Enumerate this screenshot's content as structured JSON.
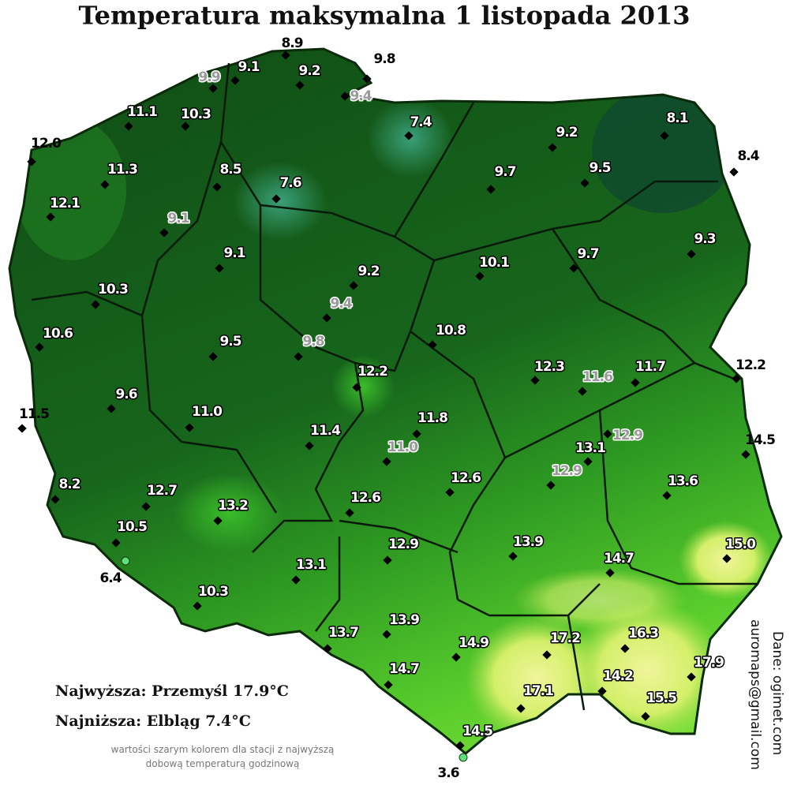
{
  "title": "Temperatura maksymalna 1 listopada 2013",
  "stations": [
    {
      "value": "8.9",
      "style": "black"
    },
    {
      "value": "9.1",
      "style": "white"
    },
    {
      "value": "9.9",
      "style": "gray"
    },
    {
      "value": "9.2",
      "style": "white"
    },
    {
      "value": "9.8",
      "style": "black"
    },
    {
      "value": "9.4",
      "style": "gray"
    },
    {
      "value": "11.1",
      "style": "white"
    },
    {
      "value": "10.3",
      "style": "white"
    },
    {
      "value": "7.4",
      "style": "white"
    },
    {
      "value": "9.2",
      "style": "white"
    },
    {
      "value": "8.1",
      "style": "white"
    },
    {
      "value": "12.0",
      "style": "black"
    },
    {
      "value": "11.3",
      "style": "white"
    },
    {
      "value": "8.5",
      "style": "white"
    },
    {
      "value": "7.6",
      "style": "white"
    },
    {
      "value": "9.7",
      "style": "white"
    },
    {
      "value": "9.5",
      "style": "white"
    },
    {
      "value": "8.4",
      "style": "black"
    },
    {
      "value": "12.1",
      "style": "white"
    },
    {
      "value": "9.1",
      "style": "gray"
    },
    {
      "value": "9.1",
      "style": "white"
    },
    {
      "value": "10.1",
      "style": "white"
    },
    {
      "value": "9.7",
      "style": "white"
    },
    {
      "value": "9.3",
      "style": "white"
    },
    {
      "value": "9.2",
      "style": "white"
    },
    {
      "value": "10.3",
      "style": "white"
    },
    {
      "value": "9.4",
      "style": "gray"
    },
    {
      "value": "10.6",
      "style": "white"
    },
    {
      "value": "9.5",
      "style": "white"
    },
    {
      "value": "9.8",
      "style": "gray"
    },
    {
      "value": "10.8",
      "style": "white"
    },
    {
      "value": "12.2",
      "style": "white"
    },
    {
      "value": "12.3",
      "style": "white"
    },
    {
      "value": "11.6",
      "style": "gray"
    },
    {
      "value": "11.7",
      "style": "white"
    },
    {
      "value": "12.2",
      "style": "black"
    },
    {
      "value": "9.6",
      "style": "white"
    },
    {
      "value": "11.5",
      "style": "black"
    },
    {
      "value": "11.0",
      "style": "white"
    },
    {
      "value": "11.8",
      "style": "white"
    },
    {
      "value": "11.4",
      "style": "white"
    },
    {
      "value": "11.0",
      "style": "gray"
    },
    {
      "value": "13.1",
      "style": "white"
    },
    {
      "value": "12.9",
      "style": "gray"
    },
    {
      "value": "14.5",
      "style": "black"
    },
    {
      "value": "12.7",
      "style": "white"
    },
    {
      "value": "8.2",
      "style": "white"
    },
    {
      "value": "12.9",
      "style": "gray"
    },
    {
      "value": "12.6",
      "style": "white"
    },
    {
      "value": "13.6",
      "style": "white"
    },
    {
      "value": "13.2",
      "style": "white"
    },
    {
      "value": "12.6",
      "style": "white"
    },
    {
      "value": "10.5",
      "style": "white"
    },
    {
      "value": "15.0",
      "style": "white"
    },
    {
      "value": "13.9",
      "style": "white"
    },
    {
      "value": "12.9",
      "style": "white"
    },
    {
      "value": "14.7",
      "style": "white"
    },
    {
      "value": "6.4",
      "style": "black",
      "marker": "circle"
    },
    {
      "value": "13.1",
      "style": "white"
    },
    {
      "value": "10.3",
      "style": "white"
    },
    {
      "value": "13.9",
      "style": "white"
    },
    {
      "value": "13.7",
      "style": "white"
    },
    {
      "value": "17.2",
      "style": "white"
    },
    {
      "value": "16.3",
      "style": "white"
    },
    {
      "value": "14.9",
      "style": "white"
    },
    {
      "value": "17.9",
      "style": "white"
    },
    {
      "value": "14.7",
      "style": "white"
    },
    {
      "value": "14.2",
      "style": "white"
    },
    {
      "value": "17.1",
      "style": "white"
    },
    {
      "value": "15.5",
      "style": "white"
    },
    {
      "value": "14.5",
      "style": "white"
    },
    {
      "value": "3.6",
      "style": "black",
      "marker": "circle"
    }
  ],
  "highest": "Najwyższa: Przemyśl 17.9°C",
  "lowest": "Najniższa: Elbląg 7.4°C",
  "note": [
    "wartości szarym kolorem dla stacji z najwyższą",
    "dobową temperaturą godzinową"
  ],
  "source": "Dane: ogimet.com",
  "contact": "auromaps@gmail.com"
}
